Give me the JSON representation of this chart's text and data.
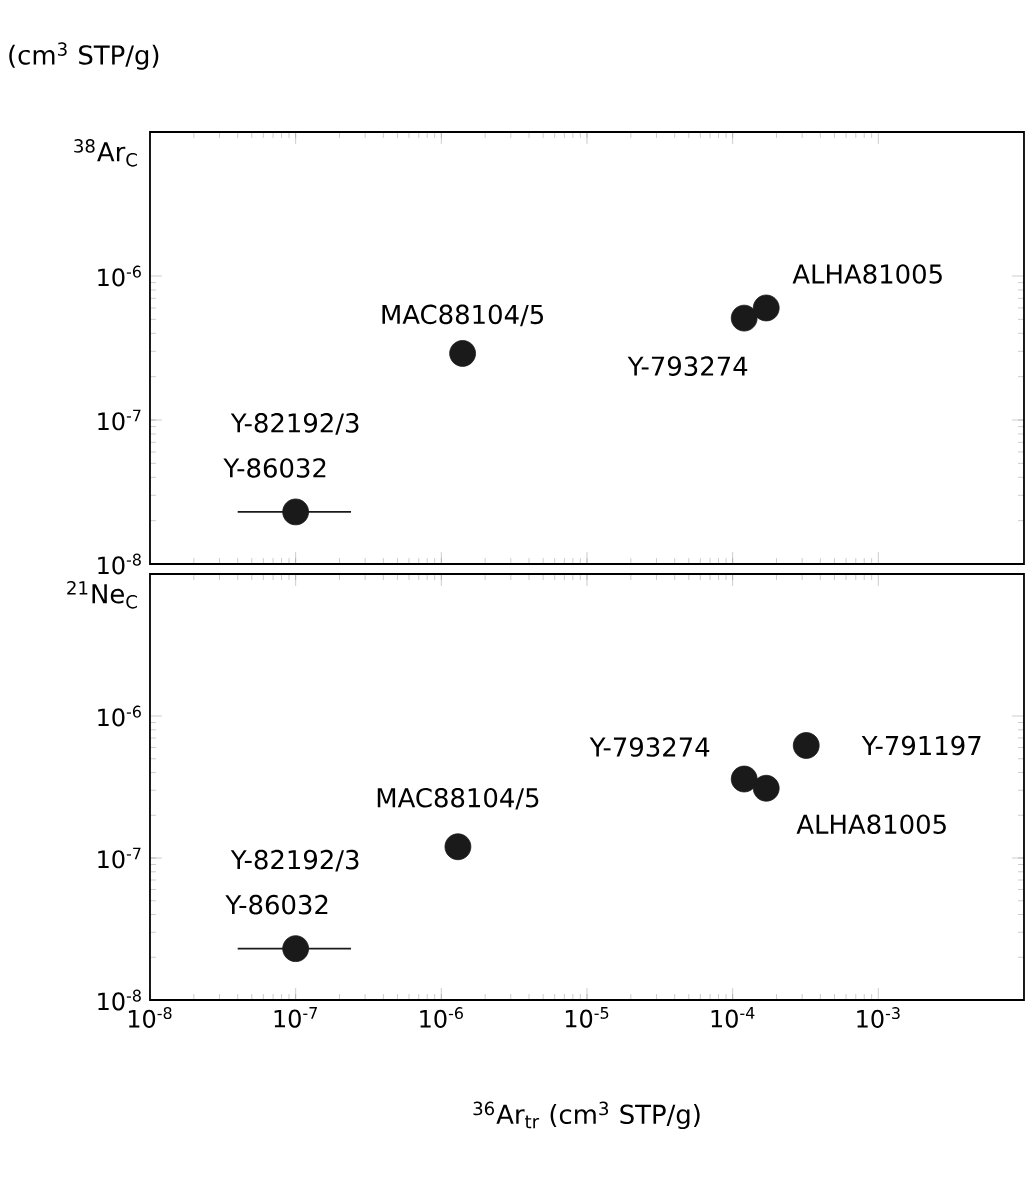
{
  "chart_data": [
    {
      "type": "scatter",
      "ylabel": "$^{38}$Ar$_{C}$",
      "log": "xy",
      "marker": "circle",
      "grid": false,
      "tick_labels": "y",
      "xlim": [
        1e-08,
        0.01
      ],
      "ylim": [
        1e-08,
        1e-05
      ],
      "xticks": [
        {
          "value": 1e-08,
          "label": null
        },
        {
          "value": 1e-07,
          "label": null
        },
        {
          "value": 1e-06,
          "label": null
        },
        {
          "value": 1e-05,
          "label": null
        },
        {
          "value": 0.0001,
          "label": null
        },
        {
          "value": 0.001,
          "label": null
        }
      ],
      "yticks": [
        {
          "value": 1e-08,
          "label": "10$^{-8}$"
        },
        {
          "value": 1e-07,
          "label": "10$^{-7}$"
        },
        {
          "value": 1e-06,
          "label": "10$^{-6}$"
        }
      ],
      "series": [
        {
          "color": "#1a1a1a",
          "x": [
            1e-07,
            1.4e-06,
            0.00012,
            0.00017
          ],
          "values": [
            2.3e-08,
            2.9e-07,
            5.1e-07,
            6e-07
          ],
          "xerrors": [
            [
              4e-08,
              2.4e-07
            ],
            null,
            null,
            null
          ]
        }
      ],
      "annotations": [
        "(cm$^{3}$ STP/g)",
        {
          "text": "Y-82192/3",
          "x": 1e-07,
          "y": 2.3e-08
        },
        {
          "text": "Y-86032",
          "x": 1e-07,
          "y": 2.3e-08
        },
        {
          "text": "MAC88104/5",
          "x": 1.4e-06,
          "y": 2.9e-07
        },
        {
          "text": "ALHA81005",
          "x": 0.00017,
          "y": 6e-07
        },
        {
          "text": "Y-793274",
          "x": 0.00012,
          "y": 5.1e-07
        }
      ]
    },
    {
      "type": "scatter",
      "ylabel": "$^{21}$Ne$_{C}$",
      "xlabel": "$^{36}$Ar$_{tr}$ (cm$^{3}$ STP/g)",
      "log": "xy",
      "marker": "circle",
      "grid": false,
      "xlim": [
        1e-08,
        0.01
      ],
      "ylim": [
        1e-08,
        1e-05
      ],
      "xticks": [
        {
          "value": 1e-08,
          "label": "10$^{-8}$"
        },
        {
          "value": 1e-07,
          "label": "10$^{-7}$"
        },
        {
          "value": 1e-06,
          "label": "10$^{-6}$"
        },
        {
          "value": 1e-05,
          "label": "10$^{-5}$"
        },
        {
          "value": 0.0001,
          "label": "10$^{-4}$"
        },
        {
          "value": 0.001,
          "label": "10$^{-3}$"
        }
      ],
      "yticks": [
        {
          "value": 1e-08,
          "label": "10$^{-8}$"
        },
        {
          "value": 1e-07,
          "label": "10$^{-7}$"
        },
        {
          "value": 1e-06,
          "label": "10$^{-6}$"
        }
      ],
      "series": [
        {
          "color": "#1a1a1a",
          "x": [
            1e-07,
            1.3e-06,
            0.00012,
            0.00017,
            0.00032
          ],
          "values": [
            2.3e-08,
            1.2e-07,
            3.6e-07,
            3.1e-07,
            6.2e-07
          ],
          "xerrors": [
            [
              4e-08,
              2.4e-07
            ],
            null,
            null,
            null,
            null
          ]
        }
      ],
      "annotations": [
        {
          "text": "Y-82192/3",
          "x": 1e-07,
          "y": 2.3e-08
        },
        {
          "text": "Y-86032",
          "x": 1e-07,
          "y": 2.3e-08
        },
        {
          "text": "MAC88104/5",
          "x": 1.3e-06,
          "y": 1.2e-07
        },
        {
          "text": "Y-793274",
          "x": 0.00012,
          "y": 3.6e-07
        },
        {
          "text": "ALHA81005",
          "x": 0.00017,
          "y": 3.1e-07
        },
        {
          "text": "Y-791197",
          "x": 0.00032,
          "y": 6.2e-07
        }
      ]
    }
  ]
}
